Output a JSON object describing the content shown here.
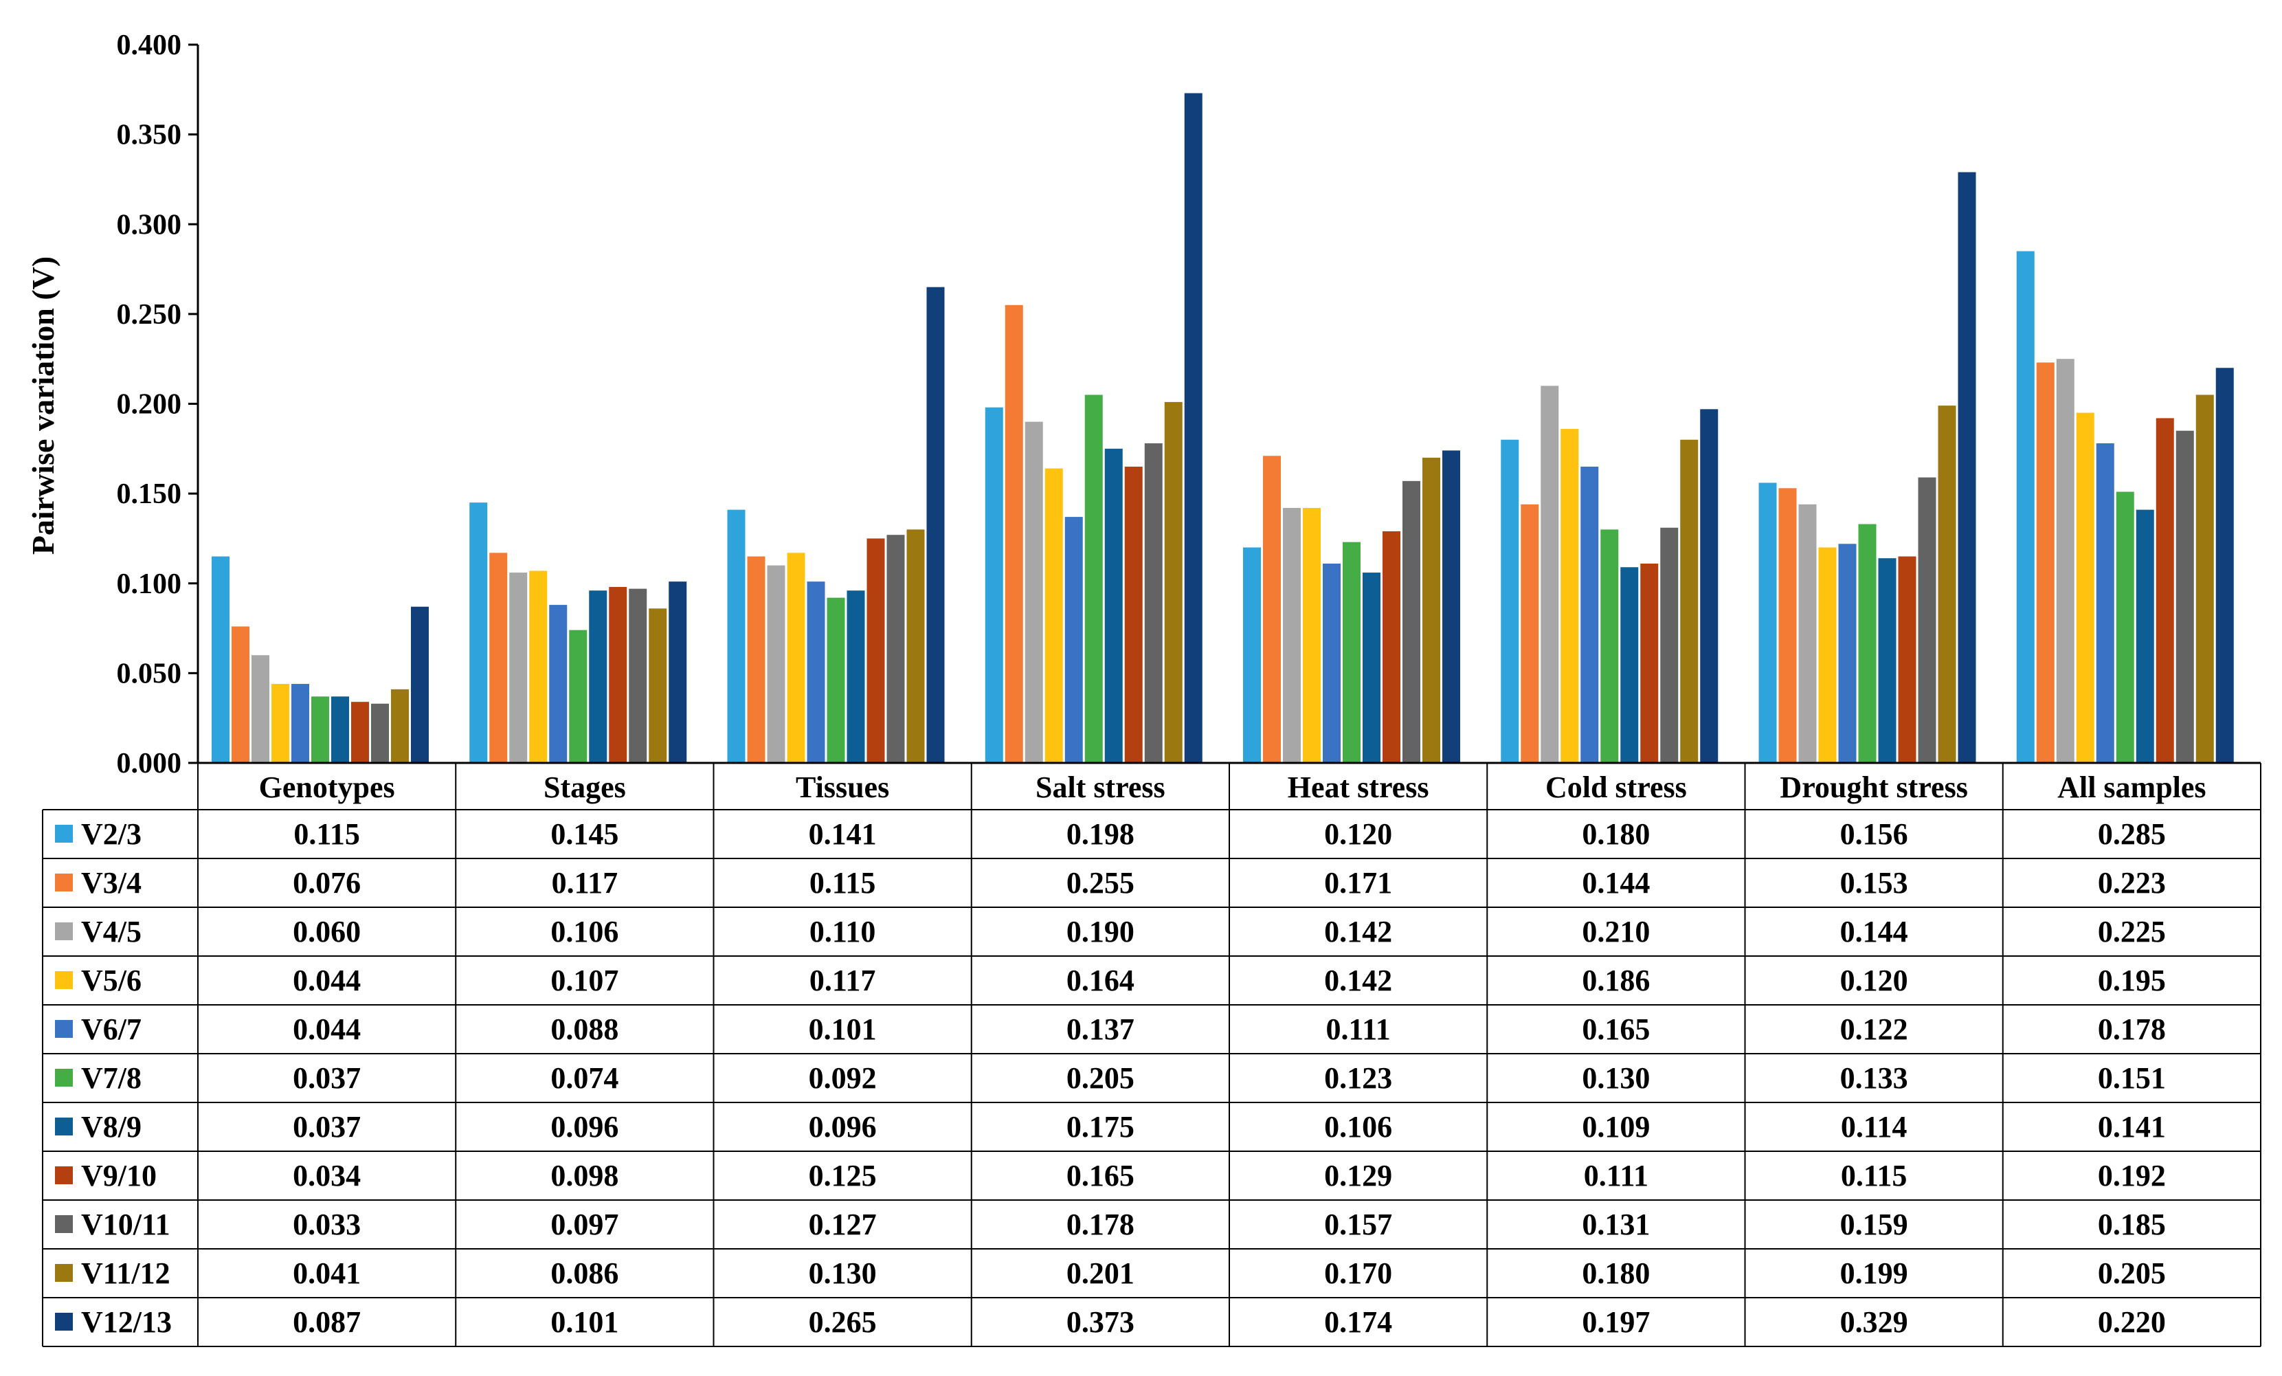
{
  "chart_data": {
    "type": "bar",
    "title": "",
    "xlabel": "",
    "ylabel": "Pairwise variation (V)",
    "ylim": [
      0,
      0.4
    ],
    "yticks": [
      "0.000",
      "0.050",
      "0.100",
      "0.150",
      "0.200",
      "0.250",
      "0.300",
      "0.350",
      "0.400"
    ],
    "grid": false,
    "legend": "data-table-left",
    "categories": [
      "Genotypes",
      "Stages",
      "Tissues",
      "Salt stress",
      "Heat stress",
      "Cold stress",
      "Drought stress",
      "All samples"
    ],
    "series": [
      {
        "name": "V2/3",
        "color": "#2ea3dc",
        "values": [
          0.115,
          0.145,
          0.141,
          0.198,
          0.12,
          0.18,
          0.156,
          0.285
        ],
        "labels": [
          "0.115",
          "0.145",
          "0.141",
          "0.198",
          "0.120",
          "0.180",
          "0.156",
          "0.285"
        ]
      },
      {
        "name": "V3/4",
        "color": "#f47b34",
        "values": [
          0.076,
          0.117,
          0.115,
          0.255,
          0.171,
          0.144,
          0.153,
          0.223
        ],
        "labels": [
          "0.076",
          "0.117",
          "0.115",
          "0.255",
          "0.171",
          "0.144",
          "0.153",
          "0.223"
        ]
      },
      {
        "name": "V4/5",
        "color": "#a7a7a7",
        "values": [
          0.06,
          0.106,
          0.11,
          0.19,
          0.142,
          0.21,
          0.144,
          0.225
        ],
        "labels": [
          "0.060",
          "0.106",
          "0.110",
          "0.190",
          "0.142",
          "0.210",
          "0.144",
          "0.225"
        ]
      },
      {
        "name": "V5/6",
        "color": "#ffc20e",
        "values": [
          0.044,
          0.107,
          0.117,
          0.164,
          0.142,
          0.186,
          0.12,
          0.195
        ],
        "labels": [
          "0.044",
          "0.107",
          "0.117",
          "0.164",
          "0.142",
          "0.186",
          "0.120",
          "0.195"
        ]
      },
      {
        "name": "V6/7",
        "color": "#3a73c4",
        "values": [
          0.044,
          0.088,
          0.101,
          0.137,
          0.111,
          0.165,
          0.122,
          0.178
        ],
        "labels": [
          "0.044",
          "0.088",
          "0.101",
          "0.137",
          "0.111",
          "0.165",
          "0.122",
          "0.178"
        ]
      },
      {
        "name": "V7/8",
        "color": "#45ad46",
        "values": [
          0.037,
          0.074,
          0.092,
          0.205,
          0.123,
          0.13,
          0.133,
          0.151
        ],
        "labels": [
          "0.037",
          "0.074",
          "0.092",
          "0.205",
          "0.123",
          "0.130",
          "0.133",
          "0.151"
        ]
      },
      {
        "name": "V8/9",
        "color": "#0e5e96",
        "values": [
          0.037,
          0.096,
          0.096,
          0.175,
          0.106,
          0.109,
          0.114,
          0.141
        ],
        "labels": [
          "0.037",
          "0.096",
          "0.096",
          "0.175",
          "0.106",
          "0.109",
          "0.114",
          "0.141"
        ]
      },
      {
        "name": "V9/10",
        "color": "#b5400f",
        "values": [
          0.034,
          0.098,
          0.125,
          0.165,
          0.129,
          0.111,
          0.115,
          0.192
        ],
        "labels": [
          "0.034",
          "0.098",
          "0.125",
          "0.165",
          "0.129",
          "0.111",
          "0.115",
          "0.192"
        ]
      },
      {
        "name": "V10/11",
        "color": "#636363",
        "values": [
          0.033,
          0.097,
          0.127,
          0.178,
          0.157,
          0.131,
          0.159,
          0.185
        ],
        "labels": [
          "0.033",
          "0.097",
          "0.127",
          "0.178",
          "0.157",
          "0.131",
          "0.159",
          "0.185"
        ]
      },
      {
        "name": "V11/12",
        "color": "#9c7810",
        "values": [
          0.041,
          0.086,
          0.13,
          0.201,
          0.17,
          0.18,
          0.199,
          0.205
        ],
        "labels": [
          "0.041",
          "0.086",
          "0.130",
          "0.201",
          "0.170",
          "0.180",
          "0.199",
          "0.205"
        ]
      },
      {
        "name": "V12/13",
        "color": "#113f7a",
        "values": [
          0.087,
          0.101,
          0.265,
          0.373,
          0.174,
          0.197,
          0.329,
          0.22
        ],
        "labels": [
          "0.087",
          "0.101",
          "0.265",
          "0.373",
          "0.174",
          "0.197",
          "0.329",
          "0.220"
        ]
      }
    ]
  }
}
